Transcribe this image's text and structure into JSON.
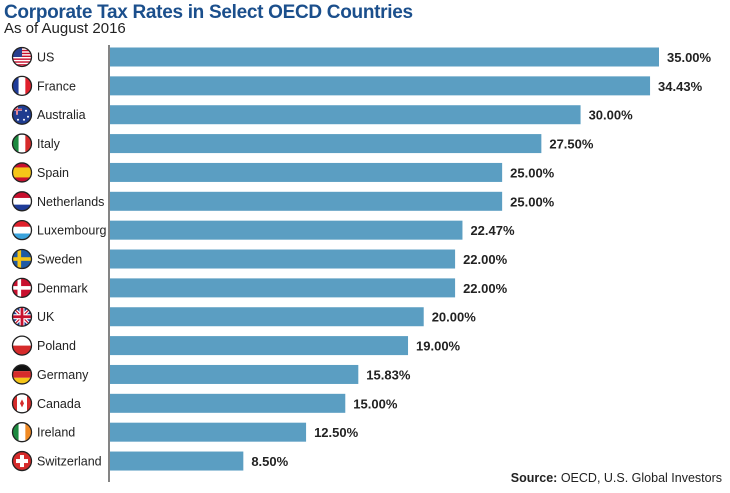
{
  "chart_data": {
    "type": "bar",
    "orientation": "horizontal",
    "title": "Corporate Tax Rates in Select OECD Countries",
    "subtitle": "As of August 2016",
    "categories": [
      "US",
      "France",
      "Australia",
      "Italy",
      "Spain",
      "Netherlands",
      "Luxembourg",
      "Sweden",
      "Denmark",
      "UK",
      "Poland",
      "Germany",
      "Canada",
      "Ireland",
      "Switzerland"
    ],
    "values": [
      35.0,
      34.43,
      30.0,
      27.5,
      25.0,
      25.0,
      22.47,
      22.0,
      22.0,
      20.0,
      19.0,
      15.83,
      15.0,
      12.5,
      8.5
    ],
    "labels": [
      "35.00%",
      "34.43%",
      "30.00%",
      "27.50%",
      "25.00%",
      "25.00%",
      "22.47%",
      "22.00%",
      "22.00%",
      "20.00%",
      "19.00%",
      "15.83%",
      "15.00%",
      "12.50%",
      "8.50%"
    ],
    "flag_icons": [
      "us-flag",
      "france-flag",
      "australia-flag",
      "italy-flag",
      "spain-flag",
      "netherlands-flag",
      "luxembourg-flag",
      "sweden-flag",
      "denmark-flag",
      "uk-flag",
      "poland-flag",
      "germany-flag",
      "canada-flag",
      "ireland-flag",
      "switzerland-flag"
    ],
    "xlim": [
      0,
      35
    ],
    "grid": false,
    "bar_color": "#5b9ec2",
    "title_color": "#1b4f8c",
    "source_label": "Source:",
    "source_text": "OECD, U.S. Global Investors"
  }
}
